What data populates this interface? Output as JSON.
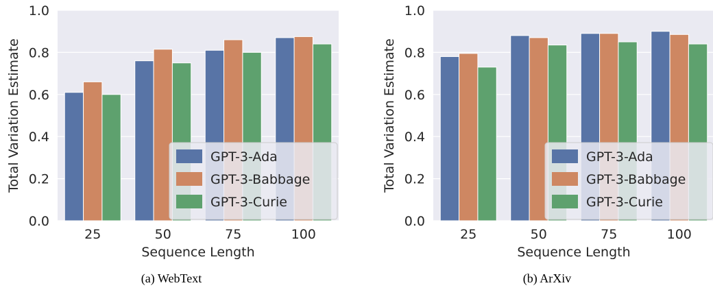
{
  "colors": {
    "plot_bg": "#eaeaf2",
    "grid": "#ffffff",
    "series": [
      "#5874a6",
      "#ce8762",
      "#5ea16e"
    ]
  },
  "chart_data": [
    {
      "type": "bar",
      "caption": "(a) WebText",
      "xlabel": "Sequence Length",
      "ylabel": "Total Variation Estimate",
      "categories": [
        "25",
        "50",
        "75",
        "100"
      ],
      "ylim": [
        0,
        1.0
      ],
      "yticks": [
        "0.0",
        "0.2",
        "0.4",
        "0.6",
        "0.8",
        "1.0"
      ],
      "grid": true,
      "legend_position": "lower-right",
      "series": [
        {
          "name": "GPT-3-Ada",
          "values": [
            0.61,
            0.76,
            0.81,
            0.87
          ]
        },
        {
          "name": "GPT-3-Babbage",
          "values": [
            0.66,
            0.815,
            0.86,
            0.875
          ]
        },
        {
          "name": "GPT-3-Curie",
          "values": [
            0.6,
            0.75,
            0.8,
            0.84
          ]
        }
      ]
    },
    {
      "type": "bar",
      "caption": "(b) ArXiv",
      "xlabel": "Sequence Length",
      "ylabel": "Total Variation Estimate",
      "categories": [
        "25",
        "50",
        "75",
        "100"
      ],
      "ylim": [
        0,
        1.0
      ],
      "yticks": [
        "0.0",
        "0.2",
        "0.4",
        "0.6",
        "0.8",
        "1.0"
      ],
      "grid": true,
      "legend_position": "lower-right",
      "series": [
        {
          "name": "GPT-3-Ada",
          "values": [
            0.78,
            0.88,
            0.89,
            0.9
          ]
        },
        {
          "name": "GPT-3-Babbage",
          "values": [
            0.795,
            0.87,
            0.89,
            0.885
          ]
        },
        {
          "name": "GPT-3-Curie",
          "values": [
            0.73,
            0.835,
            0.85,
            0.84
          ]
        }
      ]
    }
  ]
}
